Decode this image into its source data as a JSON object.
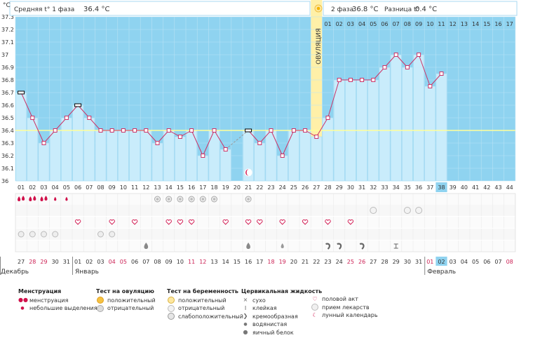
{
  "header": {
    "unit": "°C",
    "phase1_label": "Средняя t° 1 фаза",
    "phase1_value": "36.4 °C",
    "phase2_label": "2 фаза",
    "phase2_value": "36.8 °C",
    "diff_label": "Разница t°",
    "diff_value": "0.4 °C",
    "ovulation_label": "ОВУЛЯЦИЯ"
  },
  "colors": {
    "phase_bg": "#8fd3f0",
    "bar": "#c9ecfb",
    "line": "#cc3366",
    "cover_line": "#ffff99",
    "ovulation_band": "#fff0a8",
    "today": "#8fd3f0"
  },
  "chart_data": {
    "type": "area",
    "ylabel": "°C",
    "ylim": [
      36.0,
      37.3
    ],
    "yticks": [
      "36",
      "36.1",
      "36.2",
      "36.3",
      "36.4",
      "36.5",
      "36.6",
      "36.7",
      "36.8",
      "36.9",
      "37",
      "37.1",
      "37.2",
      "37.3"
    ],
    "cover_line": 36.4,
    "ovulation_day": 27,
    "today_day": 38,
    "cycle_days": [
      "01",
      "02",
      "03",
      "04",
      "05",
      "06",
      "07",
      "08",
      "09",
      "10",
      "11",
      "12",
      "13",
      "14",
      "15",
      "16",
      "17",
      "18",
      "19",
      "20",
      "21",
      "22",
      "23",
      "24",
      "25",
      "26",
      "27",
      "28",
      "29",
      "30",
      "31",
      "32",
      "33",
      "34",
      "35",
      "36",
      "37",
      "38",
      "39",
      "40",
      "41",
      "42",
      "43",
      "44"
    ],
    "phase2_top_labels": [
      "01",
      "02",
      "03",
      "04",
      "05",
      "06",
      "07",
      "08",
      "09",
      "10",
      "11",
      "12",
      "13",
      "14",
      "15",
      "16",
      "17"
    ],
    "temperatures": [
      36.7,
      36.5,
      36.3,
      36.4,
      36.5,
      36.6,
      36.5,
      36.4,
      36.4,
      36.4,
      36.4,
      36.4,
      36.3,
      36.4,
      36.35,
      36.4,
      36.2,
      36.4,
      36.25,
      null,
      36.4,
      36.3,
      36.4,
      36.2,
      36.4,
      36.4,
      36.35,
      36.5,
      36.8,
      36.8,
      36.8,
      36.8,
      36.9,
      37.0,
      36.9,
      37.0,
      36.75,
      36.85,
      null,
      null,
      null,
      null,
      null,
      null
    ],
    "bold_marker_days": [
      1,
      6,
      21
    ],
    "dates": [
      "27",
      "28",
      "29",
      "30",
      "31",
      "01",
      "02",
      "03",
      "04",
      "05",
      "06",
      "07",
      "08",
      "09",
      "10",
      "11",
      "12",
      "13",
      "14",
      "15",
      "16",
      "17",
      "18",
      "19",
      "20",
      "21",
      "22",
      "23",
      "24",
      "25",
      "26",
      "27",
      "28",
      "29",
      "30",
      "31",
      "01",
      "02",
      "03",
      "04",
      "05",
      "06",
      "07",
      "08"
    ],
    "red_date_indices": [
      1,
      2,
      8,
      9,
      15,
      16,
      22,
      23,
      29,
      30,
      36,
      43
    ],
    "months": [
      {
        "label": "Декабрь",
        "start_index": 0
      },
      {
        "label": "Январь",
        "start_index": 5
      },
      {
        "label": "Февраль",
        "start_index": 36
      }
    ],
    "menstruation": {
      "heavy": [
        1,
        2,
        3
      ],
      "light": [
        4,
        5
      ]
    },
    "ovulation_test_negative": [
      13,
      14,
      15,
      16,
      17,
      18,
      21
    ],
    "pregnancy_test_negative": [
      32,
      35,
      36
    ],
    "intercourse": [
      6,
      9,
      11,
      14,
      15,
      16,
      19,
      21,
      22,
      24,
      26,
      28,
      30
    ],
    "medication": [
      1,
      2,
      3,
      4,
      8,
      9
    ],
    "cervical_fluid": [
      {
        "day": 12,
        "kind": "eggwhite"
      },
      {
        "day": 21,
        "kind": "eggwhite"
      },
      {
        "day": 24,
        "kind": "watery"
      },
      {
        "day": 28,
        "kind": "creamy"
      },
      {
        "day": 29,
        "kind": "creamy"
      },
      {
        "day": 31,
        "kind": "creamy"
      },
      {
        "day": 34,
        "kind": "sticky"
      }
    ],
    "moon_day": 21
  },
  "legend": {
    "menstruation": {
      "title": "Менструация",
      "items": [
        "менструация",
        "небольшие выделения"
      ]
    },
    "ovulation_test": {
      "title": "Тест на овуляцию",
      "items": [
        "положительный",
        "отрицательный"
      ]
    },
    "pregnancy_test": {
      "title": "Тест на беременность",
      "items": [
        "положительный",
        "отрицательный",
        "слабоположительный"
      ]
    },
    "cervical": {
      "title": "Цервикальная жидкость",
      "items": [
        "сухо",
        "клейкая",
        "кремообразная",
        "водянистая",
        "яичный белок"
      ]
    },
    "other": {
      "items": [
        "половой акт",
        "прием лекарств",
        "лунный календарь"
      ]
    }
  }
}
